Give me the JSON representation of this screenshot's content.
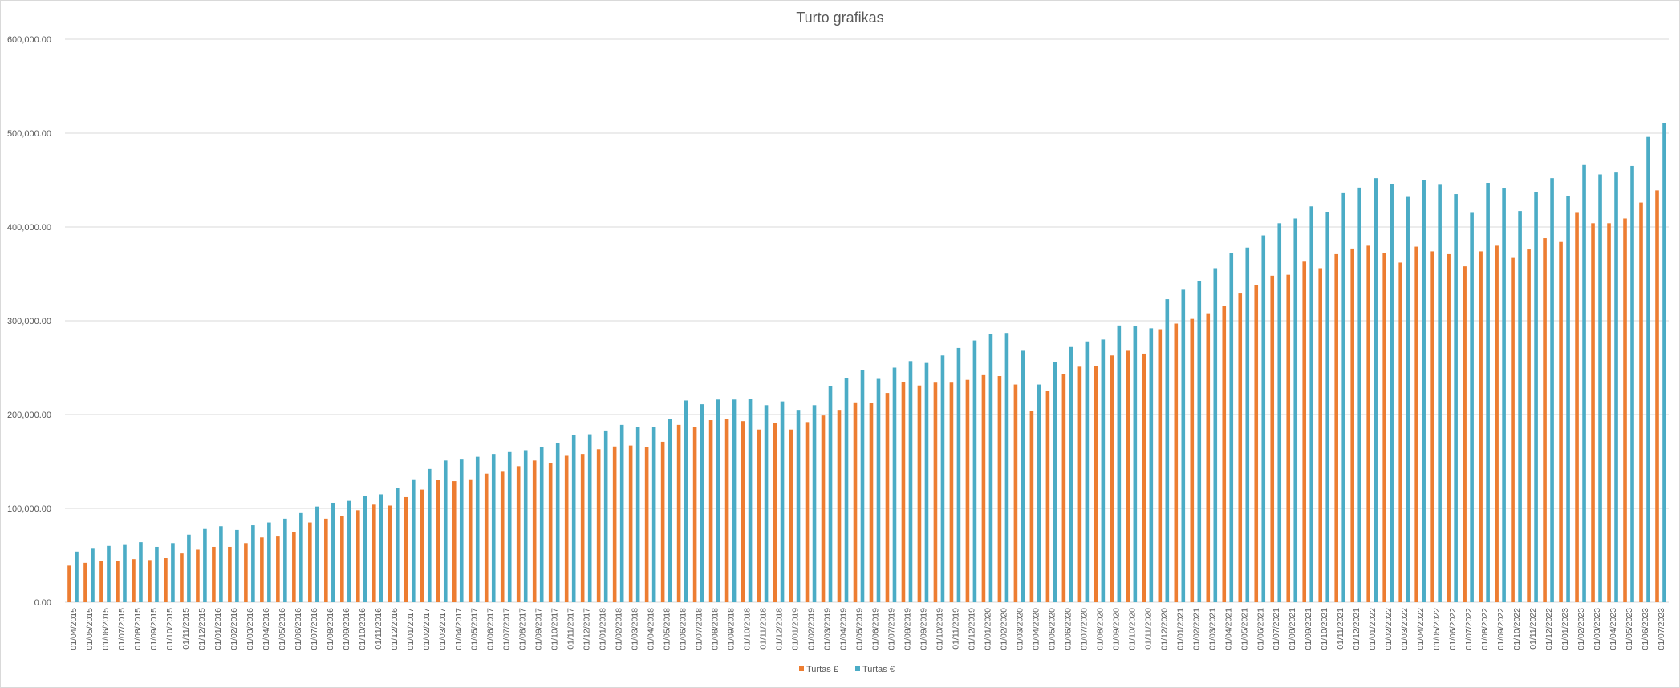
{
  "chart_data": {
    "type": "bar",
    "title": "Turto grafikas",
    "ylim": [
      0,
      600000
    ],
    "yticks": [
      "0.00",
      "100,000.00",
      "200,000.00",
      "300,000.00",
      "400,000.00",
      "500,000.00",
      "600,000.00"
    ],
    "grid": true,
    "legend_position": "bottom",
    "colors": {
      "gbp": "#ed7d31",
      "eur": "#4bacc6",
      "grid": "#d9d9d9",
      "text": "#595959"
    },
    "categories": [
      "01/04/2015",
      "01/05/2015",
      "01/06/2015",
      "01/07/2015",
      "01/08/2015",
      "01/09/2015",
      "01/10/2015",
      "01/11/2015",
      "01/12/2015",
      "01/01/2016",
      "01/02/2016",
      "01/03/2016",
      "01/04/2016",
      "01/05/2016",
      "01/06/2016",
      "01/07/2016",
      "01/08/2016",
      "01/09/2016",
      "01/10/2016",
      "01/11/2016",
      "01/12/2016",
      "01/01/2017",
      "01/02/2017",
      "01/03/2017",
      "01/04/2017",
      "01/05/2017",
      "01/06/2017",
      "01/07/2017",
      "01/08/2017",
      "01/09/2017",
      "01/10/2017",
      "01/11/2017",
      "01/12/2017",
      "01/01/2018",
      "01/02/2018",
      "01/03/2018",
      "01/04/2018",
      "01/05/2018",
      "01/06/2018",
      "01/07/2018",
      "01/08/2018",
      "01/09/2018",
      "01/10/2018",
      "01/11/2018",
      "01/12/2018",
      "01/01/2019",
      "01/02/2019",
      "01/03/2019",
      "01/04/2019",
      "01/05/2019",
      "01/06/2019",
      "01/07/2019",
      "01/08/2019",
      "01/09/2019",
      "01/10/2019",
      "01/11/2019",
      "01/12/2019",
      "01/01/2020",
      "01/02/2020",
      "01/03/2020",
      "01/04/2020",
      "01/05/2020",
      "01/06/2020",
      "01/07/2020",
      "01/08/2020",
      "01/09/2020",
      "01/10/2020",
      "01/11/2020",
      "01/12/2020",
      "01/01/2021",
      "01/02/2021",
      "01/03/2021",
      "01/04/2021",
      "01/05/2021",
      "01/06/2021",
      "01/07/2021",
      "01/08/2021",
      "01/09/2021",
      "01/10/2021",
      "01/11/2021",
      "01/12/2021",
      "01/01/2022",
      "01/02/2022",
      "01/03/2022",
      "01/04/2022",
      "01/05/2022",
      "01/06/2022",
      "01/07/2022",
      "01/08/2022",
      "01/09/2022",
      "01/10/2022",
      "01/11/2022",
      "01/12/2022",
      "01/01/2023",
      "01/02/2023",
      "01/03/2023",
      "01/04/2023",
      "01/05/2023",
      "01/06/2023",
      "01/07/2023"
    ],
    "series": [
      {
        "name": "Turtas £",
        "values": [
          39000,
          42000,
          44000,
          44000,
          46000,
          45000,
          47000,
          52000,
          56000,
          59000,
          59000,
          63000,
          69000,
          70000,
          75000,
          85000,
          89000,
          92000,
          98000,
          104000,
          103000,
          112000,
          120000,
          130000,
          129000,
          131000,
          137000,
          139000,
          145000,
          151000,
          148000,
          156000,
          158000,
          163000,
          166000,
          167000,
          165000,
          171000,
          189000,
          187000,
          194000,
          195000,
          193000,
          184000,
          191000,
          184000,
          192000,
          199000,
          205000,
          213000,
          212000,
          223000,
          235000,
          231000,
          234000,
          234000,
          237000,
          242000,
          241000,
          232000,
          204000,
          225000,
          243000,
          251000,
          252000,
          263000,
          268000,
          265000,
          291000,
          297000,
          302000,
          308000,
          316000,
          329000,
          338000,
          348000,
          349000,
          363000,
          356000,
          371000,
          377000,
          380000,
          372000,
          362000,
          379000,
          374000,
          371000,
          358000,
          374000,
          380000,
          367000,
          376000,
          388000,
          384000,
          415000,
          404000,
          404000,
          409000,
          426000,
          439000
        ]
      },
      {
        "name": "Turtas €",
        "values": [
          54000,
          57000,
          60000,
          61000,
          64000,
          59000,
          63000,
          72000,
          78000,
          81000,
          77000,
          82000,
          85000,
          89000,
          95000,
          102000,
          106000,
          108000,
          113000,
          115000,
          122000,
          131000,
          142000,
          151000,
          152000,
          155000,
          158000,
          160000,
          162000,
          165000,
          170000,
          178000,
          179000,
          183000,
          189000,
          187000,
          187000,
          195000,
          215000,
          211000,
          216000,
          216000,
          217000,
          210000,
          214000,
          205000,
          210000,
          230000,
          239000,
          247000,
          238000,
          250000,
          257000,
          255000,
          263000,
          271000,
          279000,
          286000,
          287000,
          268000,
          232000,
          256000,
          272000,
          278000,
          280000,
          295000,
          294000,
          292000,
          323000,
          333000,
          342000,
          356000,
          372000,
          378000,
          391000,
          404000,
          409000,
          422000,
          416000,
          436000,
          442000,
          452000,
          446000,
          432000,
          450000,
          445000,
          435000,
          415000,
          447000,
          441000,
          417000,
          437000,
          452000,
          433000,
          466000,
          456000,
          458000,
          465000,
          496000,
          511000
        ]
      }
    ]
  }
}
